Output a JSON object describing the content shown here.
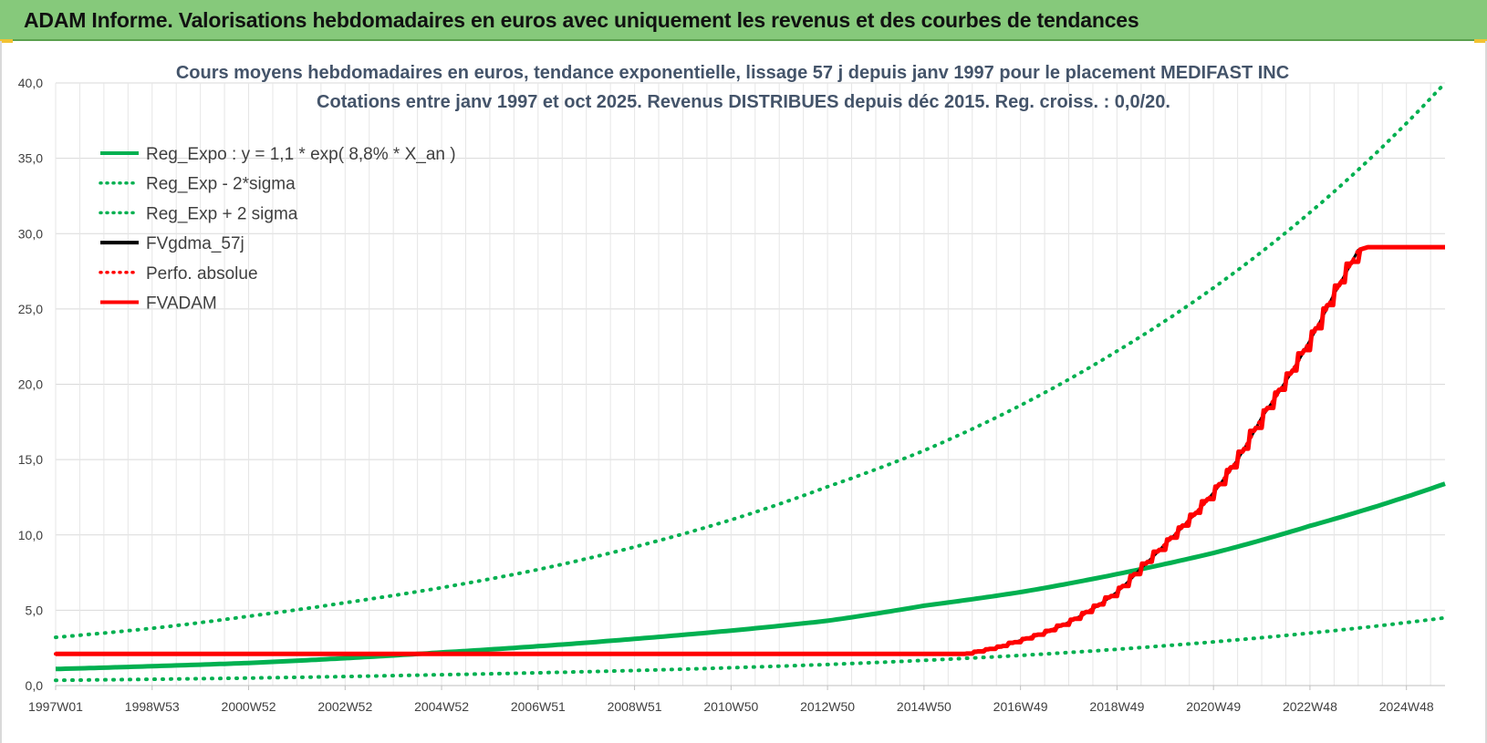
{
  "header": {
    "title": "ADAM Informe. Valorisations hebdomadaires en euros avec uniquement les revenus et des courbes de tendances"
  },
  "colors": {
    "green": "#00b050",
    "red": "#ff0000",
    "black": "#000000",
    "banner": "#86c97b"
  },
  "chart_data": {
    "type": "line",
    "title": "Cours moyens hebdomadaires en euros, tendance exponentielle, lissage 57 j depuis janv 1997 pour le placement MEDIFAST INC",
    "subtitle": "Cotations entre janv 1997 et oct 2025. Revenus DISTRIBUES depuis déc 2015. Reg. croiss. : 0,0/20.",
    "xlabel": "",
    "ylabel": "",
    "x_range": [
      1997.0,
      2025.8
    ],
    "ylim": [
      0,
      40
    ],
    "y_ticks": [
      "0,0",
      "5,0",
      "10,0",
      "15,0",
      "20,0",
      "25,0",
      "30,0",
      "35,0",
      "40,0"
    ],
    "x_ticks": [
      {
        "label": "1997W01",
        "x": 1997.0
      },
      {
        "label": "1998W53",
        "x": 1999.0
      },
      {
        "label": "2000W52",
        "x": 2001.0
      },
      {
        "label": "2002W52",
        "x": 2003.0
      },
      {
        "label": "2004W52",
        "x": 2005.0
      },
      {
        "label": "2006W51",
        "x": 2007.0
      },
      {
        "label": "2008W51",
        "x": 2009.0
      },
      {
        "label": "2010W50",
        "x": 2011.0
      },
      {
        "label": "2012W50",
        "x": 2013.0
      },
      {
        "label": "2014W50",
        "x": 2015.0
      },
      {
        "label": "2016W49",
        "x": 2017.0
      },
      {
        "label": "2018W49",
        "x": 2019.0
      },
      {
        "label": "2020W49",
        "x": 2021.0
      },
      {
        "label": "2022W48",
        "x": 2023.0
      },
      {
        "label": "2024W48",
        "x": 2025.0
      }
    ],
    "grid": true,
    "legend_position": "top-left",
    "series": [
      {
        "name": "Reg_Expo : y = 1,1 * exp( 8,8% *  X_an )",
        "style": "solid",
        "color": "#00b050",
        "x": [
          1997.0,
          2001.0,
          2005.0,
          2009.0,
          2013.0,
          2015.0,
          2017.0,
          2019.0,
          2021.0,
          2023.0,
          2025.8
        ],
        "values": [
          1.1,
          1.5,
          2.2,
          3.1,
          4.3,
          5.3,
          6.2,
          7.4,
          8.8,
          10.6,
          13.4
        ]
      },
      {
        "name": "Reg_Exp - 2*sigma",
        "style": "dotted",
        "color": "#00b050",
        "x": [
          1997.0,
          2001.0,
          2005.0,
          2009.0,
          2013.0,
          2017.0,
          2021.0,
          2025.8
        ],
        "values": [
          0.35,
          0.5,
          0.72,
          1.0,
          1.4,
          2.0,
          2.9,
          4.5
        ]
      },
      {
        "name": "Reg_Exp + 2 sigma",
        "style": "dotted",
        "color": "#00b050",
        "x": [
          1997.0,
          1999.0,
          2001.0,
          2003.0,
          2005.0,
          2007.0,
          2009.0,
          2011.0,
          2013.0,
          2015.0,
          2017.0,
          2019.0,
          2021.0,
          2023.0,
          2025.8
        ],
        "values": [
          3.2,
          3.8,
          4.6,
          5.5,
          6.5,
          7.7,
          9.2,
          11.0,
          13.2,
          15.6,
          18.6,
          22.2,
          26.4,
          31.4,
          40.0
        ]
      },
      {
        "name": "FVgdma_57j",
        "style": "solid",
        "color": "#000000",
        "x": [
          1997.0,
          2015.85,
          2016.5,
          2017.0,
          2017.5,
          2018.0,
          2018.5,
          2019.0,
          2019.5,
          2020.0,
          2020.5,
          2021.0,
          2021.5,
          2022.0,
          2022.5,
          2023.0,
          2023.5,
          2024.0,
          2024.2,
          2025.8
        ],
        "values": [
          2.1,
          2.1,
          2.5,
          3.0,
          3.5,
          4.2,
          5.1,
          6.2,
          7.8,
          9.4,
          11.0,
          12.8,
          15.0,
          17.8,
          20.2,
          22.9,
          26.0,
          28.9,
          29.1,
          29.1
        ]
      },
      {
        "name": "Perfo. absolue",
        "style": "dotted",
        "color": "#ff0000",
        "x": [
          1997.0,
          2015.85,
          2016.5,
          2017.0,
          2017.5,
          2018.0,
          2018.5,
          2019.0,
          2019.5,
          2020.0,
          2020.5,
          2021.0,
          2021.5,
          2022.0,
          2022.5,
          2023.0,
          2023.5,
          2024.0,
          2024.2,
          2025.8
        ],
        "values": [
          2.1,
          2.1,
          2.5,
          3.0,
          3.5,
          4.2,
          5.1,
          6.2,
          7.8,
          9.4,
          11.0,
          12.8,
          15.0,
          17.8,
          20.2,
          22.9,
          26.0,
          28.9,
          29.1,
          29.1
        ]
      },
      {
        "name": "FVADAM",
        "style": "solid-thick",
        "color": "#ff0000",
        "x": [
          1997.0,
          2015.85,
          2016.5,
          2017.0,
          2017.5,
          2018.0,
          2018.5,
          2019.0,
          2019.5,
          2020.0,
          2020.5,
          2021.0,
          2021.5,
          2022.0,
          2022.5,
          2023.0,
          2023.5,
          2024.0,
          2024.2,
          2025.8
        ],
        "values": [
          2.1,
          2.1,
          2.5,
          3.0,
          3.5,
          4.2,
          5.1,
          6.2,
          7.8,
          9.4,
          11.0,
          12.8,
          15.0,
          17.8,
          20.2,
          22.9,
          26.0,
          28.9,
          29.1,
          29.1
        ],
        "staircase": true
      }
    ]
  }
}
